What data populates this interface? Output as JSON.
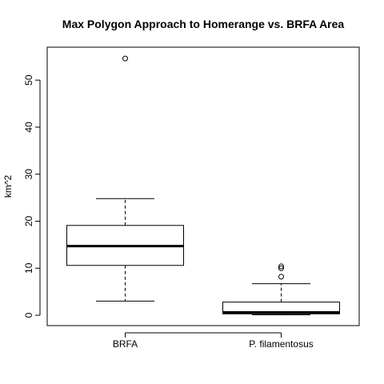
{
  "chart_data": {
    "type": "boxplot",
    "title": "Max Polygon Approach to Homerange vs. BRFA Area",
    "xlabel": "",
    "ylabel": "km^2",
    "ylim": [
      -2.2,
      57
    ],
    "yticks": [
      0,
      10,
      20,
      30,
      40,
      50
    ],
    "categories": [
      "BRFA",
      "P. filamentosus"
    ],
    "boxes": [
      {
        "min": 3.0,
        "q1": 10.6,
        "median": 14.7,
        "q3": 19.1,
        "max": 24.8,
        "outliers": [
          54.6
        ]
      },
      {
        "min": 0.1,
        "q1": 0.3,
        "median": 0.6,
        "q3": 2.8,
        "max": 6.7,
        "outliers": [
          8.2,
          10.0,
          10.4
        ]
      }
    ],
    "grid": false,
    "legend": "none"
  }
}
